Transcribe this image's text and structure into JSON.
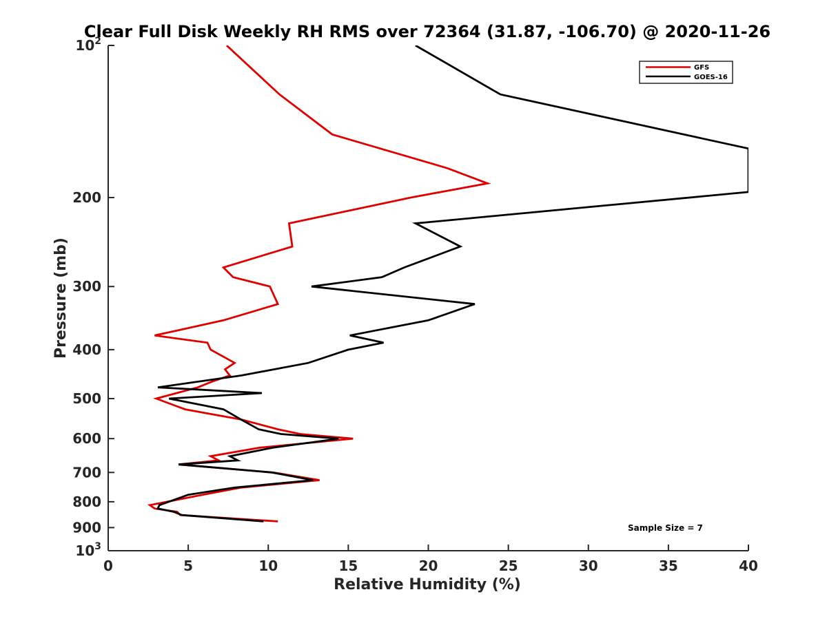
{
  "chart_data": {
    "type": "line",
    "title": "Clear Full Disk Weekly RH RMS over 72364 (31.87, -106.70) @ 2020-11-26",
    "xlabel": "Relative Humidity (%)",
    "ylabel": "Pressure (mb)",
    "xlim": [
      0,
      40
    ],
    "ylim": [
      100,
      1000
    ],
    "y_scale": "log",
    "y_reversed": true,
    "x_ticks": [
      0,
      5,
      10,
      15,
      20,
      25,
      30,
      35,
      40
    ],
    "x_tick_labels": [
      "0",
      "5",
      "10",
      "15",
      "20",
      "25",
      "30",
      "35",
      "40"
    ],
    "y_ticks": [
      100,
      200,
      300,
      400,
      500,
      600,
      700,
      800,
      900,
      1000
    ],
    "y_tick_labels": [
      {
        "base": "10",
        "exp": "2"
      },
      {
        "base": "200",
        "exp": ""
      },
      {
        "base": "300",
        "exp": ""
      },
      {
        "base": "400",
        "exp": ""
      },
      {
        "base": "500",
        "exp": ""
      },
      {
        "base": "600",
        "exp": ""
      },
      {
        "base": "700",
        "exp": ""
      },
      {
        "base": "800",
        "exp": ""
      },
      {
        "base": "900",
        "exp": ""
      },
      {
        "base": "10",
        "exp": "3"
      }
    ],
    "grid": false,
    "legend_position": "top-right",
    "annotation": "Sample Size = 7",
    "series": [
      {
        "name": "GFS",
        "color": "#e00000",
        "points": [
          [
            7.4,
            100
          ],
          [
            10.7,
            125
          ],
          [
            14.0,
            150
          ],
          [
            21.2,
            175
          ],
          [
            23.7,
            187.5
          ],
          [
            18.9,
            200
          ],
          [
            11.3,
            225
          ],
          [
            11.5,
            250
          ],
          [
            7.2,
            275
          ],
          [
            7.8,
            287.5
          ],
          [
            10.1,
            300
          ],
          [
            10.6,
            325
          ],
          [
            7.2,
            350
          ],
          [
            2.9,
            375
          ],
          [
            6.2,
            387.5
          ],
          [
            6.4,
            400
          ],
          [
            7.9,
            425
          ],
          [
            7.3,
            437.5
          ],
          [
            7.6,
            450
          ],
          [
            6.5,
            462.5
          ],
          [
            5.6,
            475
          ],
          [
            3.0,
            500
          ],
          [
            4.8,
            525
          ],
          [
            8.3,
            550
          ],
          [
            10.6,
            575
          ],
          [
            12.0,
            587.5
          ],
          [
            15.3,
            600
          ],
          [
            9.5,
            625
          ],
          [
            6.4,
            650
          ],
          [
            6.9,
            662.5
          ],
          [
            4.4,
            675
          ],
          [
            10.3,
            700
          ],
          [
            13.2,
            725
          ],
          [
            8.3,
            750
          ],
          [
            5.9,
            775
          ],
          [
            2.6,
            812.5
          ],
          [
            2.9,
            825
          ],
          [
            4.3,
            837.5
          ],
          [
            4.5,
            850
          ],
          [
            10.6,
            875
          ]
        ]
      },
      {
        "name": "GOES-16",
        "color": "#000000",
        "points": [
          [
            19.2,
            100
          ],
          [
            24.5,
            125
          ],
          [
            40.0,
            160
          ],
          [
            40.0,
            195
          ],
          [
            19.2,
            225
          ],
          [
            22.0,
            250
          ],
          [
            18.5,
            275
          ],
          [
            17.1,
            287.5
          ],
          [
            12.7,
            300
          ],
          [
            22.9,
            325
          ],
          [
            20.0,
            350
          ],
          [
            15.1,
            375
          ],
          [
            17.2,
            387.5
          ],
          [
            15.0,
            400
          ],
          [
            12.5,
            425
          ],
          [
            8.3,
            450
          ],
          [
            3.1,
            475
          ],
          [
            9.6,
            487.5
          ],
          [
            3.8,
            500
          ],
          [
            7.2,
            525
          ],
          [
            8.3,
            550
          ],
          [
            9.4,
            575
          ],
          [
            10.8,
            587.5
          ],
          [
            14.4,
            600
          ],
          [
            10.3,
            625
          ],
          [
            7.6,
            650
          ],
          [
            8.1,
            662.5
          ],
          [
            4.4,
            675
          ],
          [
            10.2,
            700
          ],
          [
            12.8,
            725
          ],
          [
            7.9,
            750
          ],
          [
            5.0,
            775
          ],
          [
            3.2,
            812.5
          ],
          [
            3.1,
            825
          ],
          [
            4.1,
            837.5
          ],
          [
            4.6,
            850
          ],
          [
            9.7,
            875
          ]
        ]
      }
    ]
  }
}
